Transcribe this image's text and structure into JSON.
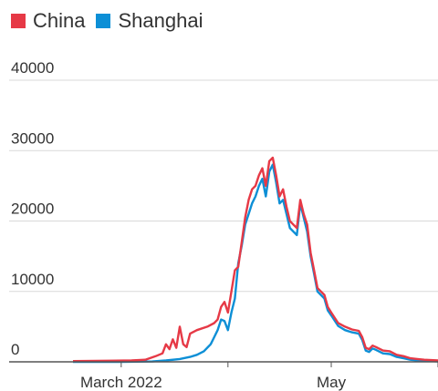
{
  "chart_data": {
    "type": "line",
    "title": "",
    "xlabel": "",
    "ylabel": "",
    "ylim": [
      0,
      40000
    ],
    "y_ticks": [
      0,
      10000,
      20000,
      30000,
      40000
    ],
    "y_tick_labels": [
      "0",
      "10000",
      "20000",
      "30000",
      "40000"
    ],
    "x_ticks": [
      {
        "x": "2022-03-01",
        "label": "March 2022"
      },
      {
        "x": "2022-04-01",
        "label": ""
      },
      {
        "x": "2022-05-01",
        "label": "May"
      },
      {
        "x": "2022-06-01",
        "label": ""
      }
    ],
    "xlim": [
      "2022-02-15",
      "2022-06-01"
    ],
    "grid": true,
    "legend": "top-left",
    "series": [
      {
        "name": "China",
        "color": "#e63946",
        "points": [
          [
            "2022-02-15",
            100
          ],
          [
            "2022-02-25",
            150
          ],
          [
            "2022-03-04",
            200
          ],
          [
            "2022-03-08",
            300
          ],
          [
            "2022-03-11",
            800
          ],
          [
            "2022-03-13",
            1200
          ],
          [
            "2022-03-14",
            2500
          ],
          [
            "2022-03-15",
            1800
          ],
          [
            "2022-03-16",
            3200
          ],
          [
            "2022-03-17",
            2000
          ],
          [
            "2022-03-18",
            5000
          ],
          [
            "2022-03-19",
            2500
          ],
          [
            "2022-03-20",
            2100
          ],
          [
            "2022-03-21",
            4000
          ],
          [
            "2022-03-23",
            4500
          ],
          [
            "2022-03-26",
            5000
          ],
          [
            "2022-03-28",
            5500
          ],
          [
            "2022-03-29",
            6000
          ],
          [
            "2022-03-30",
            7800
          ],
          [
            "2022-03-31",
            8500
          ],
          [
            "2022-04-01",
            7000
          ],
          [
            "2022-04-02",
            10000
          ],
          [
            "2022-04-03",
            13000
          ],
          [
            "2022-04-04",
            13500
          ],
          [
            "2022-04-05",
            17000
          ],
          [
            "2022-04-06",
            20500
          ],
          [
            "2022-04-07",
            23000
          ],
          [
            "2022-04-08",
            24500
          ],
          [
            "2022-04-09",
            25000
          ],
          [
            "2022-04-10",
            26500
          ],
          [
            "2022-04-11",
            27500
          ],
          [
            "2022-04-12",
            25000
          ],
          [
            "2022-04-13",
            28500
          ],
          [
            "2022-04-14",
            29000
          ],
          [
            "2022-04-15",
            26500
          ],
          [
            "2022-04-16",
            23500
          ],
          [
            "2022-04-17",
            24500
          ],
          [
            "2022-04-18",
            22000
          ],
          [
            "2022-04-19",
            20000
          ],
          [
            "2022-04-20",
            19500
          ],
          [
            "2022-04-21",
            19000
          ],
          [
            "2022-04-22",
            23000
          ],
          [
            "2022-04-23",
            21000
          ],
          [
            "2022-04-24",
            19500
          ],
          [
            "2022-04-25",
            15500
          ],
          [
            "2022-04-26",
            13000
          ],
          [
            "2022-04-27",
            10500
          ],
          [
            "2022-04-28",
            10000
          ],
          [
            "2022-04-29",
            9500
          ],
          [
            "2022-04-30",
            7800
          ],
          [
            "2022-05-01",
            7000
          ],
          [
            "2022-05-03",
            5500
          ],
          [
            "2022-05-05",
            5000
          ],
          [
            "2022-05-07",
            4600
          ],
          [
            "2022-05-09",
            4400
          ],
          [
            "2022-05-10",
            3500
          ],
          [
            "2022-05-11",
            2000
          ],
          [
            "2022-05-12",
            1800
          ],
          [
            "2022-05-13",
            2300
          ],
          [
            "2022-05-14",
            2100
          ],
          [
            "2022-05-16",
            1600
          ],
          [
            "2022-05-18",
            1500
          ],
          [
            "2022-05-20",
            1000
          ],
          [
            "2022-05-22",
            800
          ],
          [
            "2022-05-24",
            500
          ],
          [
            "2022-05-26",
            400
          ],
          [
            "2022-05-28",
            300
          ],
          [
            "2022-05-30",
            250
          ],
          [
            "2022-06-01",
            200
          ]
        ]
      },
      {
        "name": "Shanghai",
        "color": "#0d8fd6",
        "points": [
          [
            "2022-02-15",
            0
          ],
          [
            "2022-03-01",
            0
          ],
          [
            "2022-03-10",
            50
          ],
          [
            "2022-03-14",
            200
          ],
          [
            "2022-03-18",
            400
          ],
          [
            "2022-03-21",
            700
          ],
          [
            "2022-03-23",
            1000
          ],
          [
            "2022-03-25",
            1500
          ],
          [
            "2022-03-27",
            2500
          ],
          [
            "2022-03-28",
            3500
          ],
          [
            "2022-03-29",
            4500
          ],
          [
            "2022-03-30",
            6000
          ],
          [
            "2022-03-31",
            5800
          ],
          [
            "2022-04-01",
            4500
          ],
          [
            "2022-04-02",
            7000
          ],
          [
            "2022-04-03",
            9000
          ],
          [
            "2022-04-04",
            14000
          ],
          [
            "2022-04-05",
            16500
          ],
          [
            "2022-04-06",
            19500
          ],
          [
            "2022-04-07",
            21000
          ],
          [
            "2022-04-08",
            22500
          ],
          [
            "2022-04-09",
            23500
          ],
          [
            "2022-04-10",
            25000
          ],
          [
            "2022-04-11",
            26000
          ],
          [
            "2022-04-12",
            23500
          ],
          [
            "2022-04-13",
            27000
          ],
          [
            "2022-04-14",
            28000
          ],
          [
            "2022-04-15",
            25500
          ],
          [
            "2022-04-16",
            22500
          ],
          [
            "2022-04-17",
            23000
          ],
          [
            "2022-04-18",
            21000
          ],
          [
            "2022-04-19",
            19000
          ],
          [
            "2022-04-20",
            18500
          ],
          [
            "2022-04-21",
            18000
          ],
          [
            "2022-04-22",
            22500
          ],
          [
            "2022-04-23",
            20500
          ],
          [
            "2022-04-24",
            18500
          ],
          [
            "2022-04-25",
            15000
          ],
          [
            "2022-04-26",
            12500
          ],
          [
            "2022-04-27",
            10000
          ],
          [
            "2022-04-28",
            9500
          ],
          [
            "2022-04-29",
            9000
          ],
          [
            "2022-04-30",
            7300
          ],
          [
            "2022-05-01",
            6600
          ],
          [
            "2022-05-03",
            5100
          ],
          [
            "2022-05-05",
            4500
          ],
          [
            "2022-05-07",
            4200
          ],
          [
            "2022-05-09",
            4000
          ],
          [
            "2022-05-10",
            3100
          ],
          [
            "2022-05-11",
            1600
          ],
          [
            "2022-05-12",
            1400
          ],
          [
            "2022-05-13",
            1900
          ],
          [
            "2022-05-14",
            1700
          ],
          [
            "2022-05-16",
            1200
          ],
          [
            "2022-05-18",
            1100
          ],
          [
            "2022-05-20",
            700
          ],
          [
            "2022-05-22",
            500
          ],
          [
            "2022-05-24",
            300
          ],
          [
            "2022-05-26",
            200
          ],
          [
            "2022-05-28",
            150
          ],
          [
            "2022-05-30",
            100
          ],
          [
            "2022-06-01",
            50
          ]
        ]
      }
    ]
  }
}
